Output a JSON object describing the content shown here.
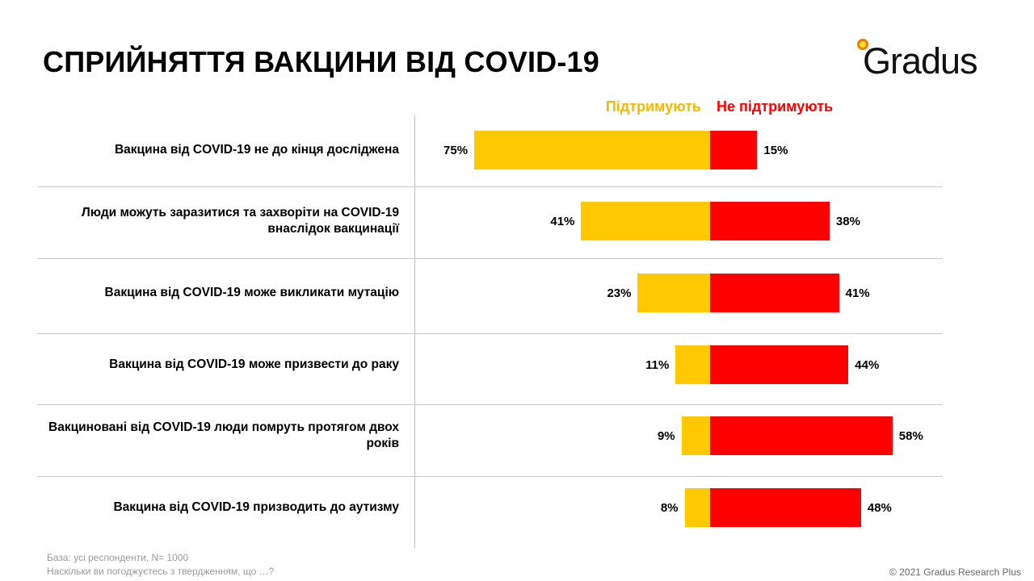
{
  "title": "СПРИЙНЯТТЯ ВАКЦИНИ ВІД COVID-19",
  "logo": {
    "text": "Gradus"
  },
  "colors": {
    "support": "#FFC800",
    "oppose": "#FF0000",
    "support_text": "#F5B800",
    "oppose_text": "#FF0000"
  },
  "chart_data": {
    "type": "bar",
    "orientation": "horizontal-diverging",
    "categories": [
      "Вакцина від COVID-19 не до кінця досліджена",
      "Люди можуть заразитися та захворіти на COVID-19 внаслідок вакцинації",
      "Вакцина від COVID-19 може викликати мутацію",
      "Вакцина від COVID-19 може призвести до раку",
      "Вакциновані від COVID-19 люди помруть протягом двох років",
      "Вакцина від COVID-19 призводить до аутизму"
    ],
    "series": [
      {
        "name": "Підтримують",
        "color": "#FFC800",
        "values": [
          75,
          41,
          23,
          11,
          9,
          8
        ]
      },
      {
        "name": "Не підтримують",
        "color": "#FF0000",
        "values": [
          15,
          38,
          41,
          44,
          58,
          48
        ]
      }
    ],
    "value_suffix": "%",
    "legend": "top"
  },
  "footnote": {
    "line1": "База: усі респонденти,  N= 1000",
    "line2": "Наскільки ви погоджуєтесь з твердженням,  що …?"
  },
  "copyright": "© 2021 Gradus Research Plus"
}
